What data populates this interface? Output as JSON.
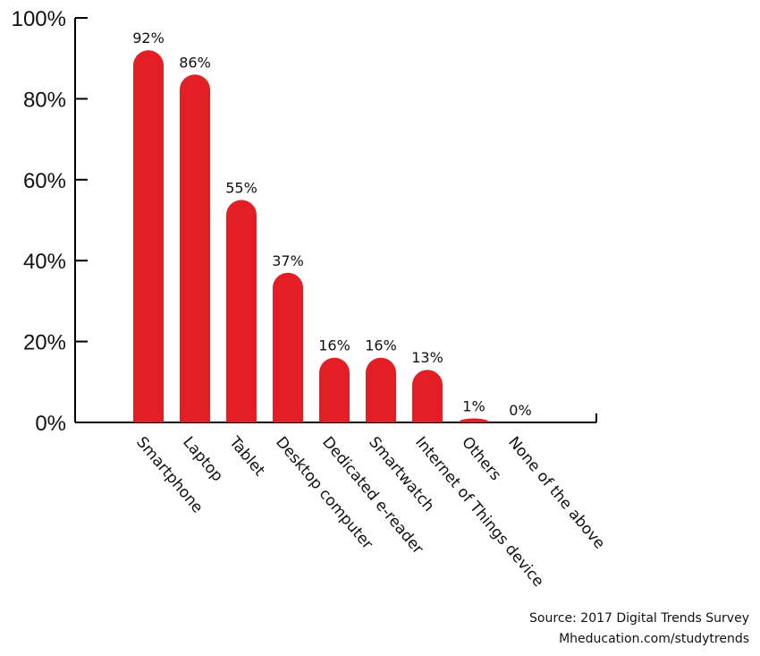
{
  "chart_data": {
    "type": "bar",
    "categories": [
      "Smartphone",
      "Laptop",
      "Tablet",
      "Desktop computer",
      "Dedicated e-reader",
      "Smartwatch",
      "Internet of Things device",
      "Others",
      "None of the above"
    ],
    "values": [
      92,
      86,
      55,
      37,
      16,
      16,
      13,
      1,
      0
    ],
    "value_labels": [
      "92%",
      "86%",
      "55%",
      "37%",
      "16%",
      "16%",
      "13%",
      "1%",
      "0%"
    ],
    "y_ticks": [
      "0%",
      "20%",
      "40%",
      "60%",
      "80%",
      "100%"
    ],
    "ylim": [
      0,
      100
    ],
    "bar_color": "#e31e24",
    "grid": false,
    "title": "",
    "xlabel": "",
    "ylabel": ""
  },
  "source": {
    "line1": "Source: 2017 Digital Trends Survey",
    "line2": "Mheducation.com/studytrends"
  }
}
